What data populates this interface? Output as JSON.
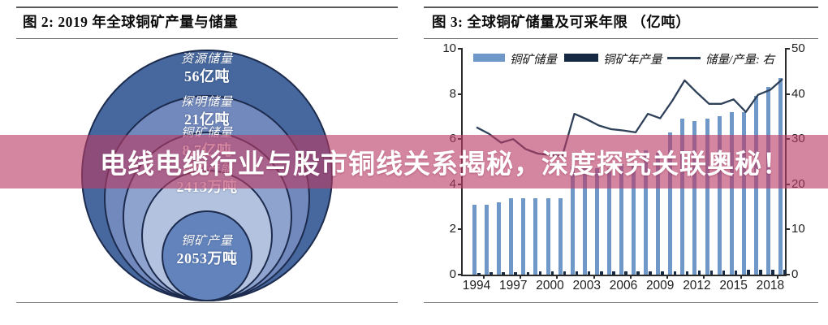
{
  "banner": {
    "text": "电线电缆行业与股市铜线关系揭秘，深度探究关联奥秘！",
    "background_color": "#ba3c66"
  },
  "left_figure": {
    "title": "图 2:  2019 年全球铜矿产量与储量"
  },
  "right_figure": {
    "title": "图 3:  全球铜矿储量及可采年限 （亿吨）",
    "legend": [
      {
        "label": "铜矿储量"
      },
      {
        "label": "铜矿年产量"
      },
      {
        "label": "储量/产量:  右"
      }
    ]
  },
  "chart_data": [
    {
      "type": "nested-circles",
      "title": "2019 年全球铜矿产量与储量",
      "rings": [
        {
          "label": "资源储量",
          "value": "56亿吨",
          "color": "#47689e"
        },
        {
          "label": "探明储量",
          "value": "21亿吨",
          "color": "#7289bd"
        },
        {
          "label": "铜矿储量",
          "value": "8.7亿吨",
          "color": "#8ea4ce"
        },
        {
          "label": "铜矿产能",
          "value": "2413万吨",
          "color": "#b3c2de"
        },
        {
          "label": "铜矿产量",
          "value": "2053万吨",
          "color": "#6283bc"
        }
      ]
    },
    {
      "type": "bar+line",
      "title": "全球铜矿储量及可采年限 （亿吨）",
      "x": [
        1994,
        1995,
        1996,
        1997,
        1998,
        1999,
        2000,
        2001,
        2002,
        2003,
        2004,
        2005,
        2006,
        2007,
        2008,
        2009,
        2010,
        2011,
        2012,
        2013,
        2014,
        2015,
        2016,
        2017,
        2018,
        2019
      ],
      "x_labels": [
        1994,
        1997,
        2000,
        2003,
        2006,
        2009,
        2012,
        2015,
        2018
      ],
      "left_axis": {
        "min": 0,
        "max": 10,
        "step": 2
      },
      "right_axis": {
        "min": 0,
        "max": 50,
        "step": 10
      },
      "series": [
        {
          "name": "铜矿储量",
          "type": "bar",
          "axis": "left",
          "color": "#6f97c8",
          "values": [
            3.1,
            3.1,
            3.2,
            3.4,
            3.4,
            3.4,
            3.4,
            3.4,
            4.8,
            4.7,
            4.7,
            4.7,
            4.9,
            4.9,
            5.5,
            5.4,
            6.3,
            6.9,
            6.8,
            6.9,
            7.0,
            7.2,
            7.2,
            7.9,
            8.3,
            8.7
          ]
        },
        {
          "name": "铜矿年产量",
          "type": "bar",
          "axis": "left",
          "color": "#152a42",
          "values": [
            0.09,
            0.1,
            0.11,
            0.11,
            0.12,
            0.13,
            0.13,
            0.13,
            0.14,
            0.14,
            0.15,
            0.15,
            0.15,
            0.16,
            0.16,
            0.16,
            0.16,
            0.16,
            0.17,
            0.18,
            0.19,
            0.19,
            0.2,
            0.2,
            0.21,
            0.21
          ]
        },
        {
          "name": "储量/产量: 右",
          "type": "line",
          "axis": "right",
          "color": "#2f4159",
          "values": [
            32.6,
            31.2,
            29.2,
            30.0,
            27.8,
            26.8,
            26.5,
            26.2,
            35.6,
            34.4,
            33.0,
            32.2,
            31.9,
            31.5,
            35.6,
            34.6,
            38.5,
            43.0,
            40.3,
            37.8,
            37.8,
            38.8,
            36.0,
            39.8,
            40.9,
            43.3
          ]
        }
      ]
    }
  ]
}
